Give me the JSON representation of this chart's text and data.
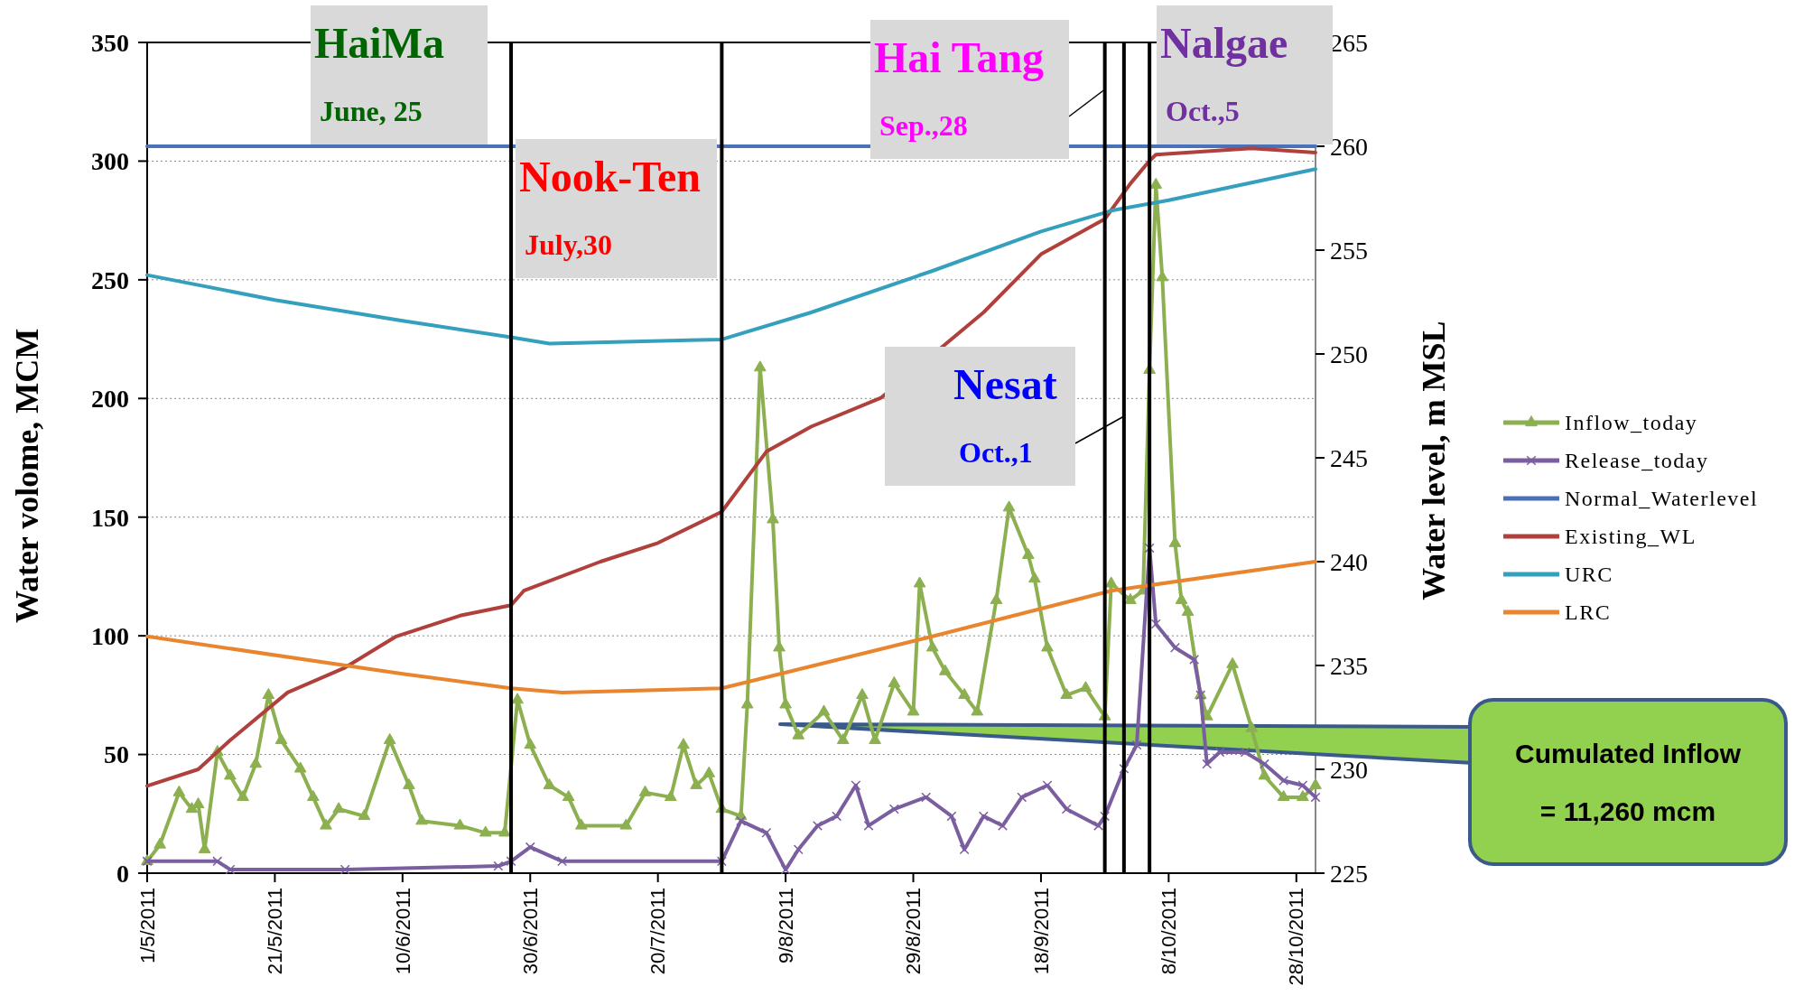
{
  "chart_data": {
    "type": "line",
    "ylabel": "Water volome, MCM",
    "y2label": "Water level, m MSL",
    "xlim": [
      "2011-05-01",
      "2011-10-31"
    ],
    "xticks": [
      {
        "value": "2011-05-01",
        "label": "1/5/2011"
      },
      {
        "value": "2011-05-21",
        "label": "21/5/2011"
      },
      {
        "value": "2011-06-10",
        "label": "10/6/2011"
      },
      {
        "value": "2011-06-30",
        "label": "30/6/2011"
      },
      {
        "value": "2011-07-20",
        "label": "20/7/2011"
      },
      {
        "value": "2011-08-09",
        "label": "9/8/2011"
      },
      {
        "value": "2011-08-29",
        "label": "29/8/2011"
      },
      {
        "value": "2011-09-18",
        "label": "18/9/2011"
      },
      {
        "value": "2011-10-08",
        "label": "8/10/2011"
      },
      {
        "value": "2011-10-28",
        "label": "28/10/2011"
      }
    ],
    "ylim": [
      0,
      350
    ],
    "yticks": [
      0,
      50,
      100,
      150,
      200,
      250,
      300,
      350
    ],
    "y2lim": [
      225,
      265
    ],
    "y2ticks": [
      225,
      230,
      235,
      240,
      245,
      250,
      255,
      260,
      265
    ],
    "grid": "y",
    "legend": "right",
    "series": [
      {
        "name": "Inflow_today",
        "color": "#8cb050",
        "marker": "triangle",
        "x": [
          "2011-05-01",
          "2011-05-03",
          "2011-05-06",
          "2011-05-08",
          "2011-05-09",
          "2011-05-10",
          "2011-05-12",
          "2011-05-14",
          "2011-05-16",
          "2011-05-18",
          "2011-05-20",
          "2011-05-22",
          "2011-05-25",
          "2011-05-27",
          "2011-05-29",
          "2011-05-31",
          "2011-06-04",
          "2011-06-08",
          "2011-06-11",
          "2011-06-13",
          "2011-06-19",
          "2011-06-23",
          "2011-06-26",
          "2011-06-28",
          "2011-06-30",
          "2011-07-03",
          "2011-07-06",
          "2011-07-08",
          "2011-07-15",
          "2011-07-18",
          "2011-07-22",
          "2011-07-24",
          "2011-07-26",
          "2011-07-28",
          "2011-07-30",
          "2011-08-02",
          "2011-08-03",
          "2011-08-05",
          "2011-08-07",
          "2011-08-08",
          "2011-08-09",
          "2011-08-11",
          "2011-08-15",
          "2011-08-18",
          "2011-08-21",
          "2011-08-23",
          "2011-08-26",
          "2011-08-29",
          "2011-08-30",
          "2011-09-01",
          "2011-09-03",
          "2011-09-06",
          "2011-09-08",
          "2011-09-11",
          "2011-09-13",
          "2011-09-16",
          "2011-09-17",
          "2011-09-19",
          "2011-09-22",
          "2011-09-25",
          "2011-09-28",
          "2011-09-29",
          "2011-10-02",
          "2011-10-04",
          "2011-10-05",
          "2011-10-06",
          "2011-10-07",
          "2011-10-09",
          "2011-10-10",
          "2011-10-11",
          "2011-10-13",
          "2011-10-14",
          "2011-10-18",
          "2011-10-21",
          "2011-10-23",
          "2011-10-26",
          "2011-10-29",
          "2011-10-31"
        ],
        "values": [
          5,
          12,
          34,
          27,
          29,
          10,
          51,
          41,
          32,
          46,
          75,
          56,
          44,
          32,
          20,
          27,
          24,
          56,
          37,
          22,
          20,
          17,
          17,
          73,
          54,
          37,
          32,
          20,
          20,
          34,
          32,
          54,
          37,
          42,
          27,
          24,
          71,
          213,
          149,
          95,
          71,
          58,
          68,
          56,
          75,
          56,
          80,
          68,
          122,
          95,
          85,
          75,
          68,
          115,
          154,
          134,
          124,
          95,
          75,
          78,
          66,
          122,
          115,
          119,
          212,
          290,
          251,
          139,
          115,
          110,
          75,
          66,
          88,
          61,
          41,
          32,
          32,
          37
        ]
      },
      {
        "name": "Release_today",
        "color": "#7a5ea0",
        "marker": "cross",
        "axis": "y",
        "x": [
          "2011-05-01",
          "2011-05-12",
          "2011-05-14",
          "2011-06-01",
          "2011-06-25",
          "2011-06-27",
          "2011-06-30",
          "2011-07-05",
          "2011-07-30",
          "2011-08-02",
          "2011-08-06",
          "2011-08-09",
          "2011-08-11",
          "2011-08-14",
          "2011-08-17",
          "2011-08-20",
          "2011-08-22",
          "2011-08-26",
          "2011-08-31",
          "2011-09-04",
          "2011-09-06",
          "2011-09-09",
          "2011-09-12",
          "2011-09-15",
          "2011-09-19",
          "2011-09-22",
          "2011-09-27",
          "2011-09-28",
          "2011-10-01",
          "2011-10-03",
          "2011-10-05",
          "2011-10-06",
          "2011-10-09",
          "2011-10-12",
          "2011-10-13",
          "2011-10-14",
          "2011-10-16",
          "2011-10-20",
          "2011-10-23",
          "2011-10-26",
          "2011-10-29",
          "2011-10-31"
        ],
        "values": [
          5,
          5,
          1.5,
          1.5,
          3,
          5,
          11,
          5,
          5,
          22,
          17,
          1.5,
          10,
          20,
          24,
          37,
          20,
          27,
          32,
          24,
          10,
          24,
          20,
          32,
          37,
          27,
          20,
          24,
          44,
          54,
          137,
          105,
          95,
          90,
          75,
          46,
          51,
          51,
          46,
          39,
          37,
          32
        ]
      },
      {
        "name": "Normal_Waterlevel",
        "color": "#4a72b8",
        "marker": "none",
        "axis": "y2",
        "x": [
          "2011-05-01",
          "2011-10-31"
        ],
        "values": [
          260,
          260
        ]
      },
      {
        "name": "Existing_WL",
        "color": "#b0403c",
        "marker": "none",
        "axis": "y2",
        "x": [
          "2011-05-01",
          "2011-05-09",
          "2011-05-14",
          "2011-05-23",
          "2011-06-01",
          "2011-06-09",
          "2011-06-19",
          "2011-06-27",
          "2011-06-29",
          "2011-07-11",
          "2011-07-20",
          "2011-07-30",
          "2011-08-06",
          "2011-08-13",
          "2011-08-24",
          "2011-09-09",
          "2011-09-18",
          "2011-09-28",
          "2011-10-02",
          "2011-10-05",
          "2011-10-06",
          "2011-10-21",
          "2011-10-31"
        ],
        "values": [
          229.2,
          230.0,
          231.4,
          233.7,
          234.9,
          236.4,
          237.4,
          237.9,
          238.6,
          240.0,
          240.9,
          242.4,
          245.3,
          246.5,
          247.9,
          252.0,
          254.8,
          256.5,
          258.2,
          259.3,
          259.6,
          259.9,
          259.7
        ]
      },
      {
        "name": "URC",
        "color": "#35a0bd",
        "marker": "none",
        "axis": "y2",
        "x": [
          "2011-05-01",
          "2011-05-21",
          "2011-06-10",
          "2011-06-27",
          "2011-07-03",
          "2011-07-30",
          "2011-08-13",
          "2011-09-01",
          "2011-09-18",
          "2011-09-29",
          "2011-10-08",
          "2011-10-31"
        ],
        "values": [
          253.8,
          252.6,
          251.6,
          250.8,
          250.5,
          250.7,
          252.0,
          254.0,
          255.9,
          256.9,
          257.4,
          258.9
        ]
      },
      {
        "name": "LRC",
        "color": "#e8852e",
        "marker": "none",
        "axis": "y2",
        "x": [
          "2011-05-01",
          "2011-06-10",
          "2011-06-27",
          "2011-07-05",
          "2011-07-30",
          "2011-09-01",
          "2011-09-29",
          "2011-10-31"
        ],
        "values": [
          236.4,
          234.6,
          233.9,
          233.7,
          233.9,
          236.4,
          238.6,
          240.0
        ]
      }
    ],
    "ref_lines": [
      {
        "axis": "x",
        "value": "2011-06-27",
        "label": "HaiMa\nJune, 25",
        "color": "#000000"
      },
      {
        "axis": "x",
        "value": "2011-07-30",
        "label": "Nook-Ten\nJuly,30",
        "color": "#000000"
      },
      {
        "axis": "x",
        "value": "2011-09-28",
        "label": "Hai Tang\nSep.,28",
        "color": "#000000"
      },
      {
        "axis": "x",
        "value": "2011-10-01",
        "label": "Nesat\nOct.,1",
        "color": "#000000"
      },
      {
        "axis": "x",
        "value": "2011-10-05",
        "label": "Nalgae\nOct.,5",
        "color": "#000000"
      }
    ],
    "annotations": [
      "Cumulated Inflow\n= 11,260 mcm"
    ]
  }
}
